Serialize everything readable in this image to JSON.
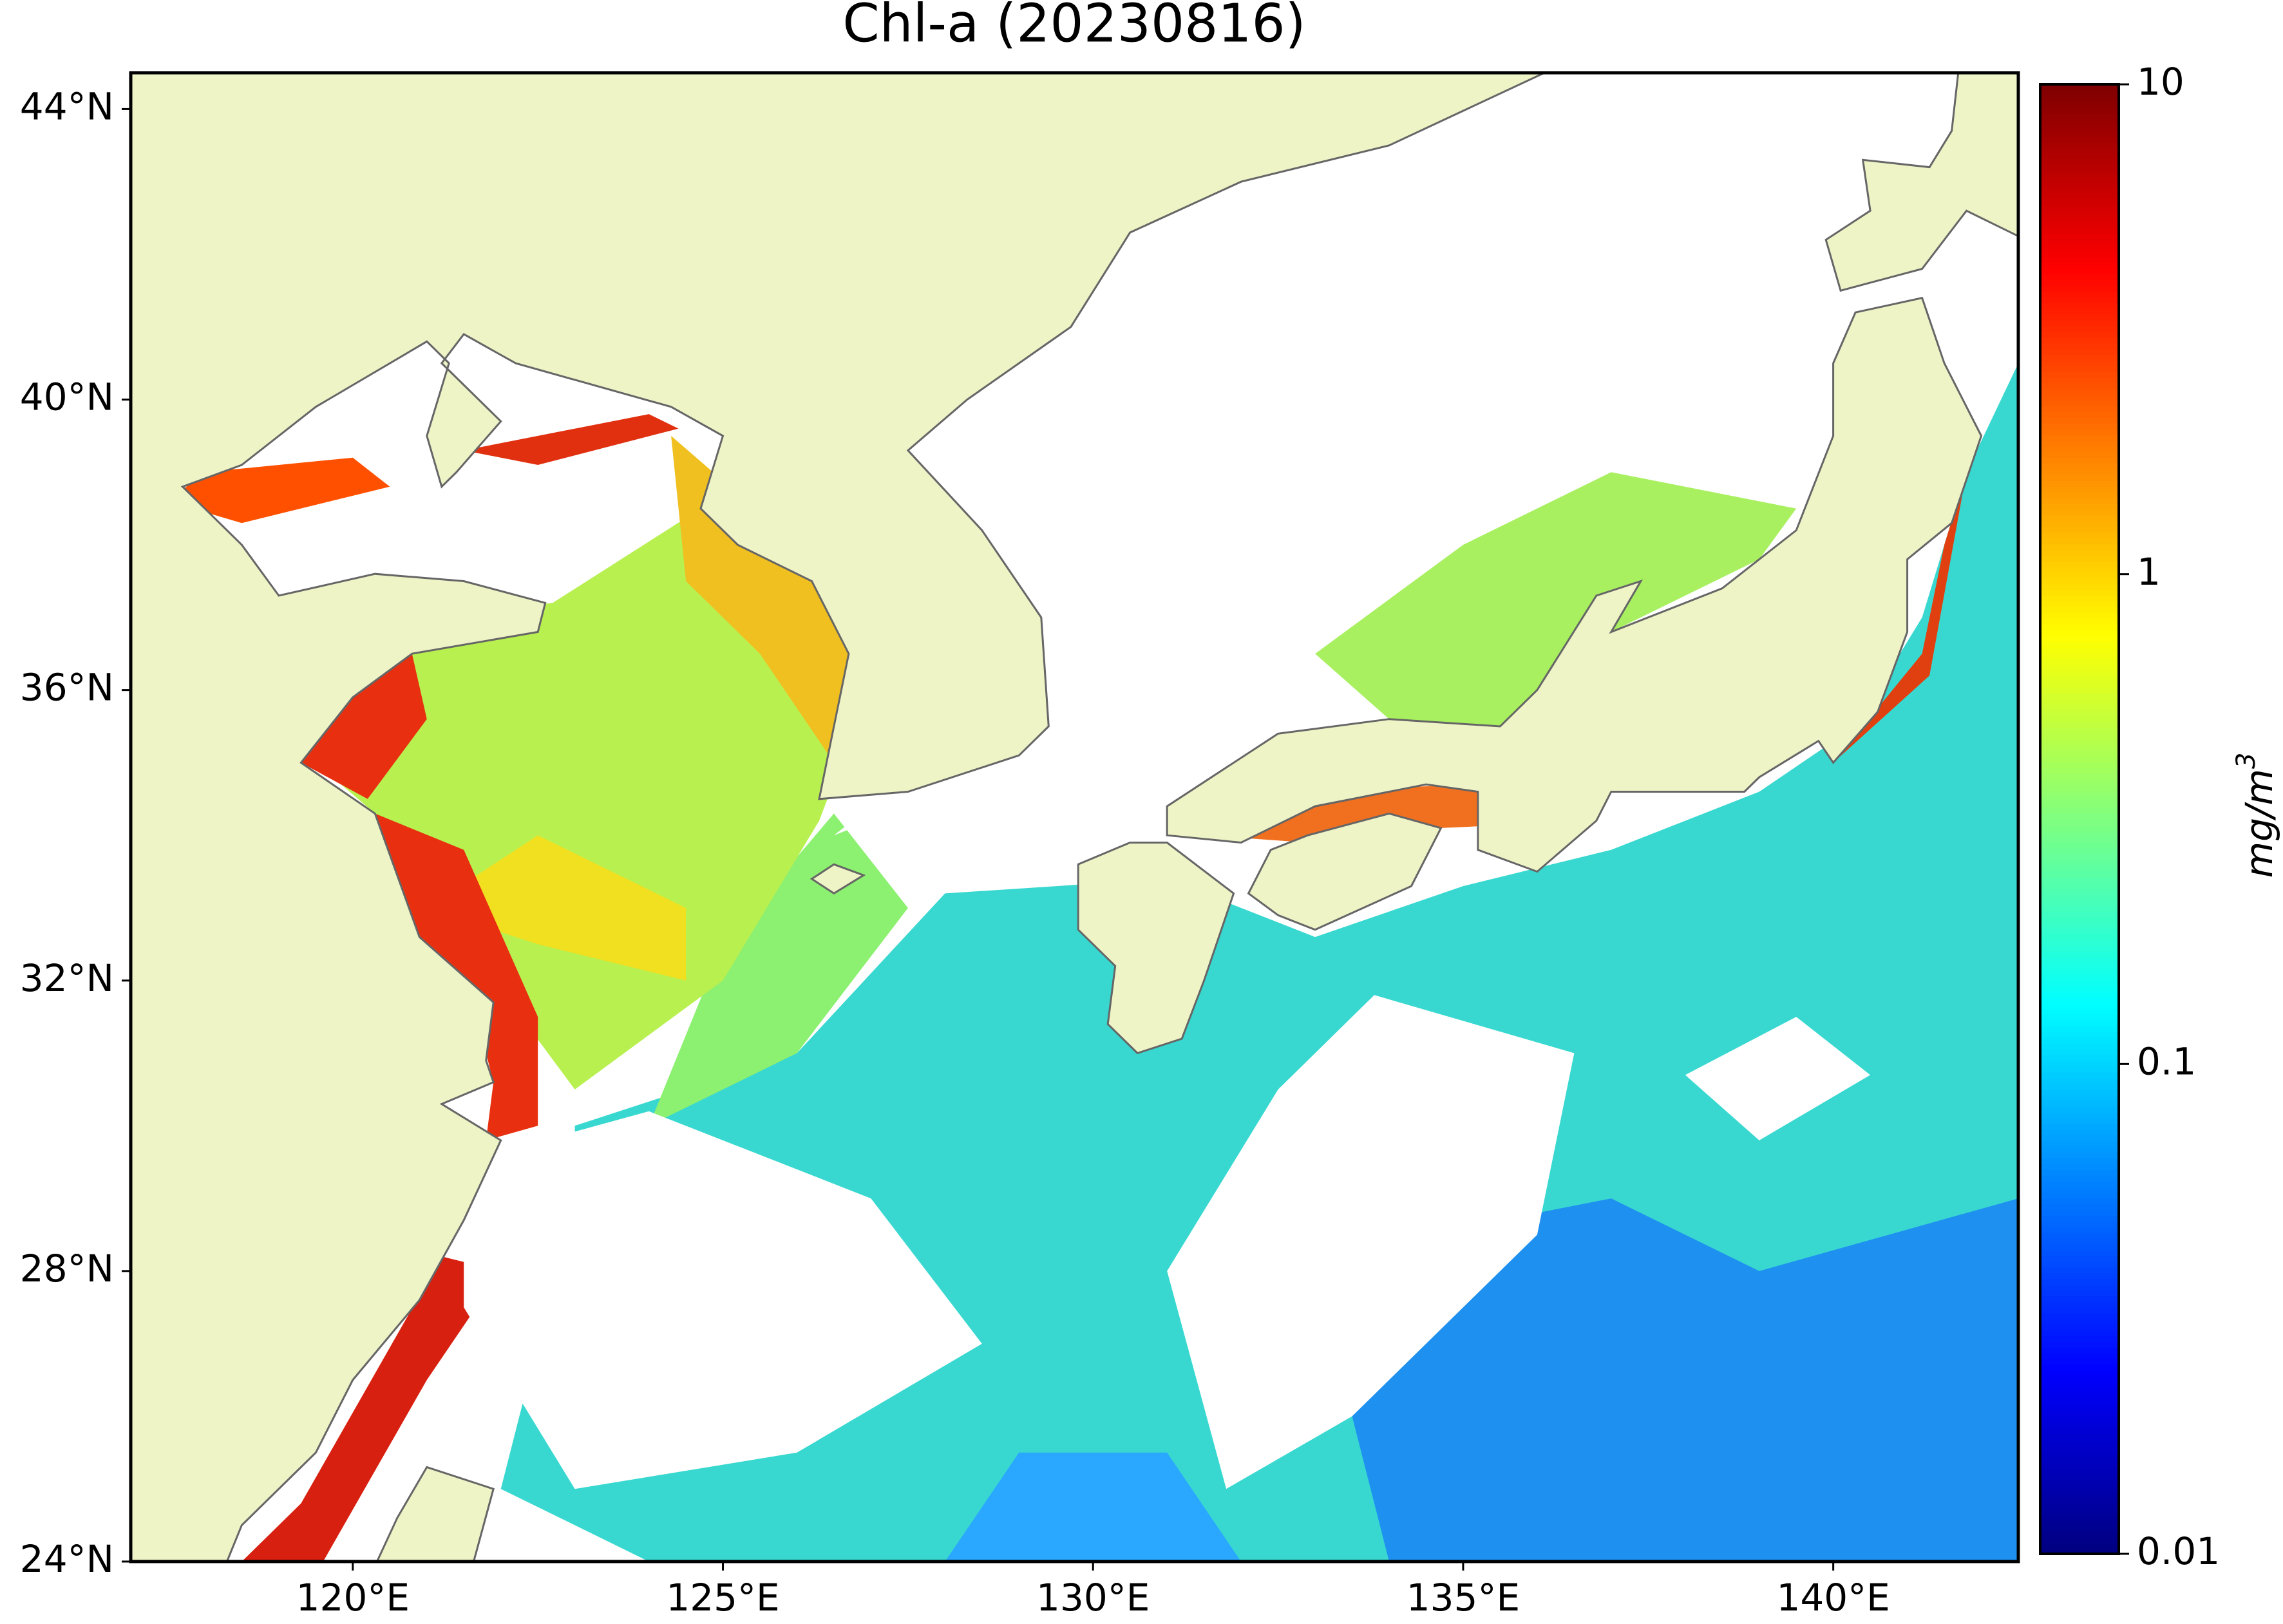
{
  "chart_data": {
    "type": "map",
    "title": "Chl-a (20230816)",
    "xlim": [
      117,
      142.5
    ],
    "ylim": [
      24,
      44.5
    ],
    "xticks": [
      {
        "value": 120,
        "label": "120°E"
      },
      {
        "value": 125,
        "label": "125°E"
      },
      {
        "value": 130,
        "label": "130°E"
      },
      {
        "value": 135,
        "label": "135°E"
      },
      {
        "value": 140,
        "label": "140°E"
      }
    ],
    "yticks": [
      {
        "value": 24,
        "label": "24°N"
      },
      {
        "value": 28,
        "label": "28°N"
      },
      {
        "value": 32,
        "label": "32°N"
      },
      {
        "value": 36,
        "label": "36°N"
      },
      {
        "value": 40,
        "label": "40°N"
      },
      {
        "value": 44,
        "label": "44°N"
      }
    ],
    "colorbar": {
      "colormap": "jet",
      "log": true,
      "clim": [
        0.01,
        10
      ],
      "ticks": [
        0.01,
        0.1,
        1,
        10
      ],
      "label": {
        "base": "mg/m",
        "sup": "3"
      }
    }
  }
}
